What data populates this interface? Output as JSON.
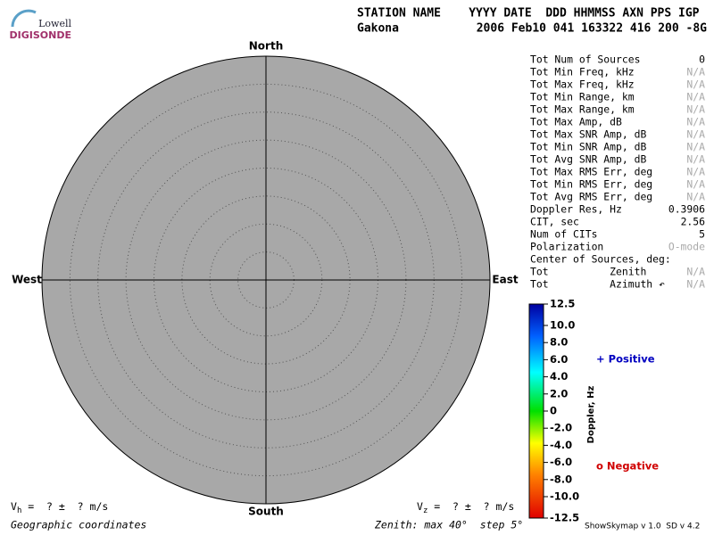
{
  "logo": {
    "top": "Lowell",
    "bottom": "DIGISONDE"
  },
  "header": {
    "columns": "STATION NAME    YYYY DATE  DDD HHMMSS AXN PPS IGP",
    "station": "Gakona",
    "values": "2006 Feb10 041 163322 416 200 -8G"
  },
  "directions": {
    "north": "North",
    "south": "South",
    "east": "East",
    "west": "West"
  },
  "stats": [
    {
      "label": "Tot Num of Sources",
      "value": "0"
    },
    {
      "label": "Tot Min Freq, kHz",
      "value": "N/A"
    },
    {
      "label": "Tot Max Freq, kHz",
      "value": "N/A"
    },
    {
      "label": "Tot Min Range, km",
      "value": "N/A"
    },
    {
      "label": "Tot Max Range, km",
      "value": "N/A"
    },
    {
      "label": "Tot Max Amp, dB",
      "value": "N/A"
    },
    {
      "label": "Tot Max SNR Amp, dB",
      "value": "N/A"
    },
    {
      "label": "Tot Min SNR Amp, dB",
      "value": "N/A"
    },
    {
      "label": "Tot Avg SNR Amp, dB",
      "value": "N/A"
    },
    {
      "label": "Tot Max RMS Err, deg",
      "value": "N/A"
    },
    {
      "label": "Tot Min RMS Err, deg",
      "value": "N/A"
    },
    {
      "label": "Tot Avg RMS Err, deg",
      "value": "N/A"
    },
    {
      "label": "Doppler Res, Hz",
      "value": "0.3906"
    },
    {
      "label": "CIT, sec",
      "value": "2.56"
    },
    {
      "label": "Num of CITs",
      "value": "5"
    },
    {
      "label": "Polarization",
      "value": "O-mode"
    },
    {
      "label": "Center of Sources, deg:"
    },
    {
      "label": "Tot          Zenith",
      "value": "N/A"
    },
    {
      "label": "Tot          Azimuth ↶",
      "value": "N/A"
    }
  ],
  "colorbar": {
    "label": "Doppler, Hz",
    "range": [
      -12.5,
      12.5
    ],
    "ticks": [
      12.5,
      {
        "value": 10,
        "label": "10.0"
      },
      {
        "value": 8,
        "label": "8.0"
      },
      {
        "value": 6,
        "label": "6.0"
      },
      {
        "value": 4,
        "label": "4.0"
      },
      {
        "value": 2,
        "label": "2.0"
      },
      0,
      {
        "value": -2,
        "label": "-2.0"
      },
      {
        "value": -4,
        "label": "-4.0"
      },
      {
        "value": -6,
        "label": "-6.0"
      },
      {
        "value": -8,
        "label": "-8.0"
      },
      {
        "value": -10,
        "label": "-10.0"
      },
      -12.5
    ]
  },
  "legend": {
    "positive": "+ Positive",
    "negative": "o Negative"
  },
  "footer": {
    "vh_symbol": "V",
    "vh_sub": "h",
    "vh_text": " =  ? ±  ? m/s",
    "vz_symbol": "V",
    "vz_sub": "z",
    "vz_text": " =  ? ±  ? m/s",
    "coords": "Geographic coordinates",
    "zenith": "Zenith: max 40°  step 5°",
    "version": "ShowSkymap v 1.0  SD v 4.2"
  }
}
